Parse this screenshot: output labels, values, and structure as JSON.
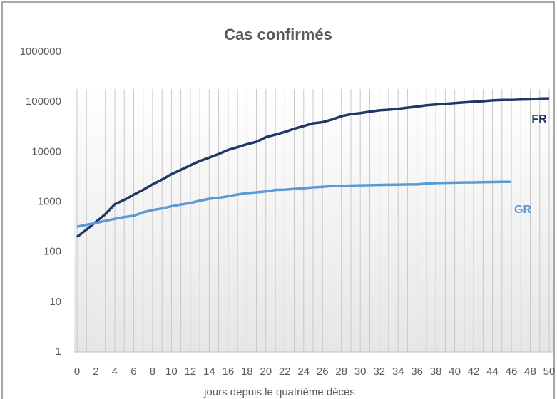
{
  "chart_data": {
    "type": "line",
    "title": "Cas confirmés",
    "x_label": "jours depuis le quatrième décès",
    "x": [
      0,
      1,
      2,
      3,
      4,
      5,
      6,
      7,
      8,
      9,
      10,
      11,
      12,
      13,
      14,
      15,
      16,
      17,
      18,
      19,
      20,
      21,
      22,
      23,
      24,
      25,
      26,
      27,
      28,
      29,
      30,
      31,
      32,
      33,
      34,
      35,
      36,
      37,
      38,
      39,
      40,
      41,
      42,
      43,
      44,
      45,
      46,
      47,
      48,
      49,
      50
    ],
    "xlim": [
      0,
      50
    ],
    "xticks": [
      0,
      2,
      4,
      6,
      8,
      10,
      12,
      14,
      16,
      18,
      20,
      22,
      24,
      26,
      28,
      30,
      32,
      34,
      36,
      38,
      40,
      42,
      44,
      46,
      48,
      50
    ],
    "ylim": [
      1,
      1000000
    ],
    "yticks": [
      1,
      10,
      100,
      1000,
      10000,
      100000,
      1000000
    ],
    "log_scale": true,
    "grid": true,
    "series": [
      {
        "name": "FR",
        "color": "#1f3864",
        "values": [
          200,
          280,
          400,
          570,
          900,
          1100,
          1400,
          1750,
          2250,
          2800,
          3600,
          4400,
          5400,
          6600,
          7700,
          9100,
          11000,
          12500,
          14300,
          16000,
          19800,
          22300,
          25200,
          29200,
          33000,
          37500,
          39500,
          44500,
          52000,
          57000,
          60000,
          64000,
          68000,
          70000,
          73000,
          77000,
          81000,
          86000,
          89000,
          92000,
          95000,
          98000,
          101000,
          104000,
          108000,
          110000,
          110000,
          112000,
          113000,
          117000,
          118000
        ]
      },
      {
        "name": "GR",
        "color": "#5b9bd5",
        "values": [
          320,
          350,
          380,
          420,
          460,
          500,
          530,
          620,
          690,
          740,
          820,
          890,
          950,
          1060,
          1160,
          1210,
          1300,
          1410,
          1500,
          1560,
          1620,
          1740,
          1760,
          1830,
          1880,
          1960,
          2010,
          2080,
          2080,
          2140,
          2150,
          2170,
          2190,
          2210,
          2220,
          2240,
          2240,
          2330,
          2400,
          2420,
          2440,
          2460,
          2470,
          2490,
          2510,
          2530,
          2530,
          null,
          null,
          null,
          null
        ]
      }
    ]
  }
}
